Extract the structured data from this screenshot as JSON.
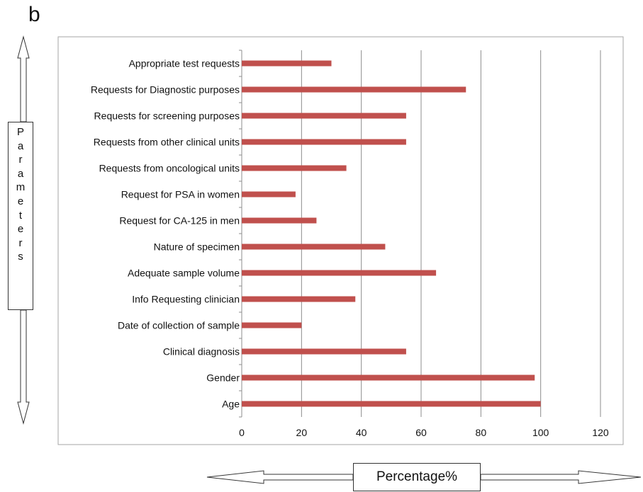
{
  "panel_label": "b",
  "chart_data": {
    "type": "bar",
    "orientation": "horizontal",
    "categories": [
      "Appropriate test requests",
      "Requests for Diagnostic purposes",
      "Requests for screening purposes",
      "Requests from other clinical units",
      "Requests from oncological units",
      "Request for PSA in women",
      "Request for CA-125 in men",
      "Nature of specimen",
      "Adequate sample volume",
      "Info Requesting clinician",
      "Date of collection of sample",
      "Clinical diagnosis",
      "Gender",
      "Age"
    ],
    "values": [
      30,
      75,
      55,
      55,
      35,
      18,
      25,
      48,
      65,
      38,
      20,
      55,
      98,
      100
    ],
    "xlim": [
      0,
      120
    ],
    "xticks": [
      "0",
      "20",
      "40",
      "60",
      "80",
      "100",
      "120"
    ],
    "xlabel": "Percentage%",
    "ylabel": "Parameters",
    "grid": "vertical",
    "colors": {
      "bar": "#c0504d",
      "grid": "#8c8c8c",
      "frame": "#a6a6a6",
      "arrow": "#333333"
    }
  }
}
